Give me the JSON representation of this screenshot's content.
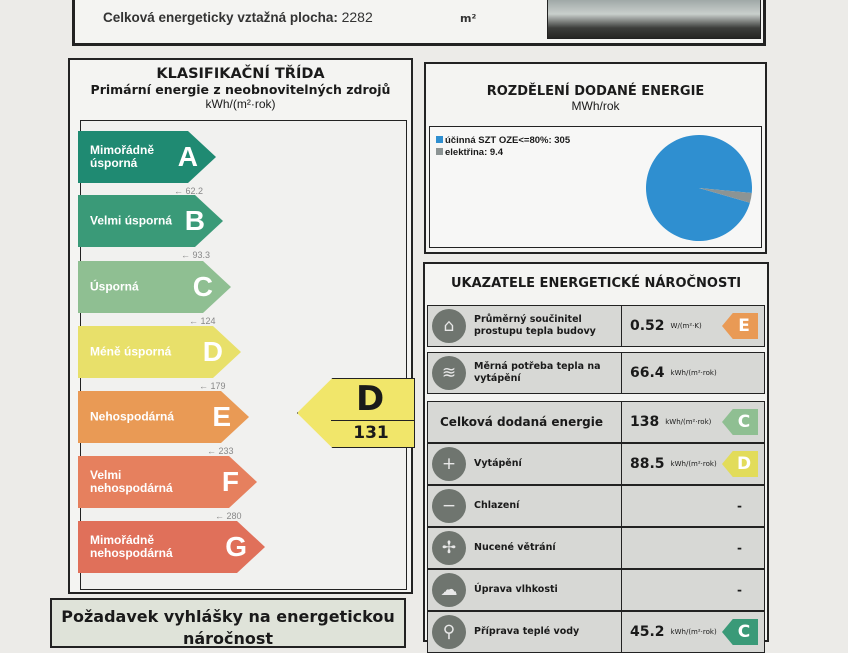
{
  "header": {
    "area_label": "Celková energeticky vztažná plocha:",
    "area_value": "2282",
    "area_unit": "m²"
  },
  "classification": {
    "title": "KLASIFIKAČNÍ TŘÍDA",
    "subtitle": "Primární energie z neobnovitelných zdrojů",
    "unit": "kWh/(m²·rok)",
    "classes": [
      {
        "letter": "A",
        "label": "Mimořádně úsporná",
        "color": "#1f8a72",
        "threshold": "62.2"
      },
      {
        "letter": "B",
        "label": "Velmi úsporná",
        "color": "#3a9a78",
        "threshold": "93.3"
      },
      {
        "letter": "C",
        "label": "Úsporná",
        "color": "#8fbf92",
        "threshold": "124"
      },
      {
        "letter": "D",
        "label": "Méně úsporná",
        "color": "#e8e06a",
        "threshold": "179"
      },
      {
        "letter": "E",
        "label": "Nehospodárná",
        "color": "#e99a55",
        "threshold": "233"
      },
      {
        "letter": "F",
        "label": "Velmi nehospodárná",
        "color": "#e6805e",
        "threshold": "280"
      },
      {
        "letter": "G",
        "label": "Mimořádně nehospodárná",
        "color": "#e0705a"
      }
    ],
    "result": {
      "letter": "D",
      "value": "131"
    }
  },
  "distribution": {
    "title": "ROZDĚLENÍ DODANÉ ENERGIE",
    "unit": "MWh/rok",
    "chart_data": {
      "type": "pie",
      "series": [
        {
          "name": "účinná SZT OZE<=80%",
          "value": 305,
          "label": "účinná SZT OZE<=80%: 305",
          "color": "#2f8fd0"
        },
        {
          "name": "elektřina",
          "value": 9.4,
          "label": "elektřina: 9.4",
          "color": "#8c9494"
        }
      ]
    }
  },
  "indicators": {
    "title": "UKAZATELE ENERGETICKÉ NÁROČNOSTI",
    "rows": [
      {
        "icon": "house-icon",
        "name": "Průměrný součinitel prostupu tepla budovy",
        "value": "0.52",
        "unit": "W/(m²·K)",
        "class": "E",
        "color": "#e99a55"
      },
      {
        "icon": "heat-demand-icon",
        "name": "Měrná potřeba tepla na vytápění",
        "value": "66.4",
        "unit": "kWh/(m²·rok)"
      },
      {
        "name": "Celková dodaná energie",
        "value": "138",
        "unit": "kWh/(m²·rok)",
        "class": "C",
        "color": "#8fbf92"
      },
      {
        "icon": "thermometer-plus-icon",
        "name": "Vytápění",
        "value": "88.5",
        "unit": "kWh/(m²·rok)",
        "class": "D",
        "color": "#e2dc5a"
      },
      {
        "icon": "thermometer-minus-icon",
        "name": "Chlazení",
        "value": "-"
      },
      {
        "icon": "fan-icon",
        "name": "Nucené větrání",
        "value": "-"
      },
      {
        "icon": "humidity-icon",
        "name": "Úprava vlhkosti",
        "value": "-"
      },
      {
        "icon": "faucet-icon",
        "name": "Příprava teplé vody",
        "value": "45.2",
        "unit": "kWh/(m²·rok)",
        "class": "C",
        "color": "#3a9a78"
      }
    ]
  },
  "requirement": {
    "title": "Požadavek vyhlášky na energetickou náročnost"
  }
}
